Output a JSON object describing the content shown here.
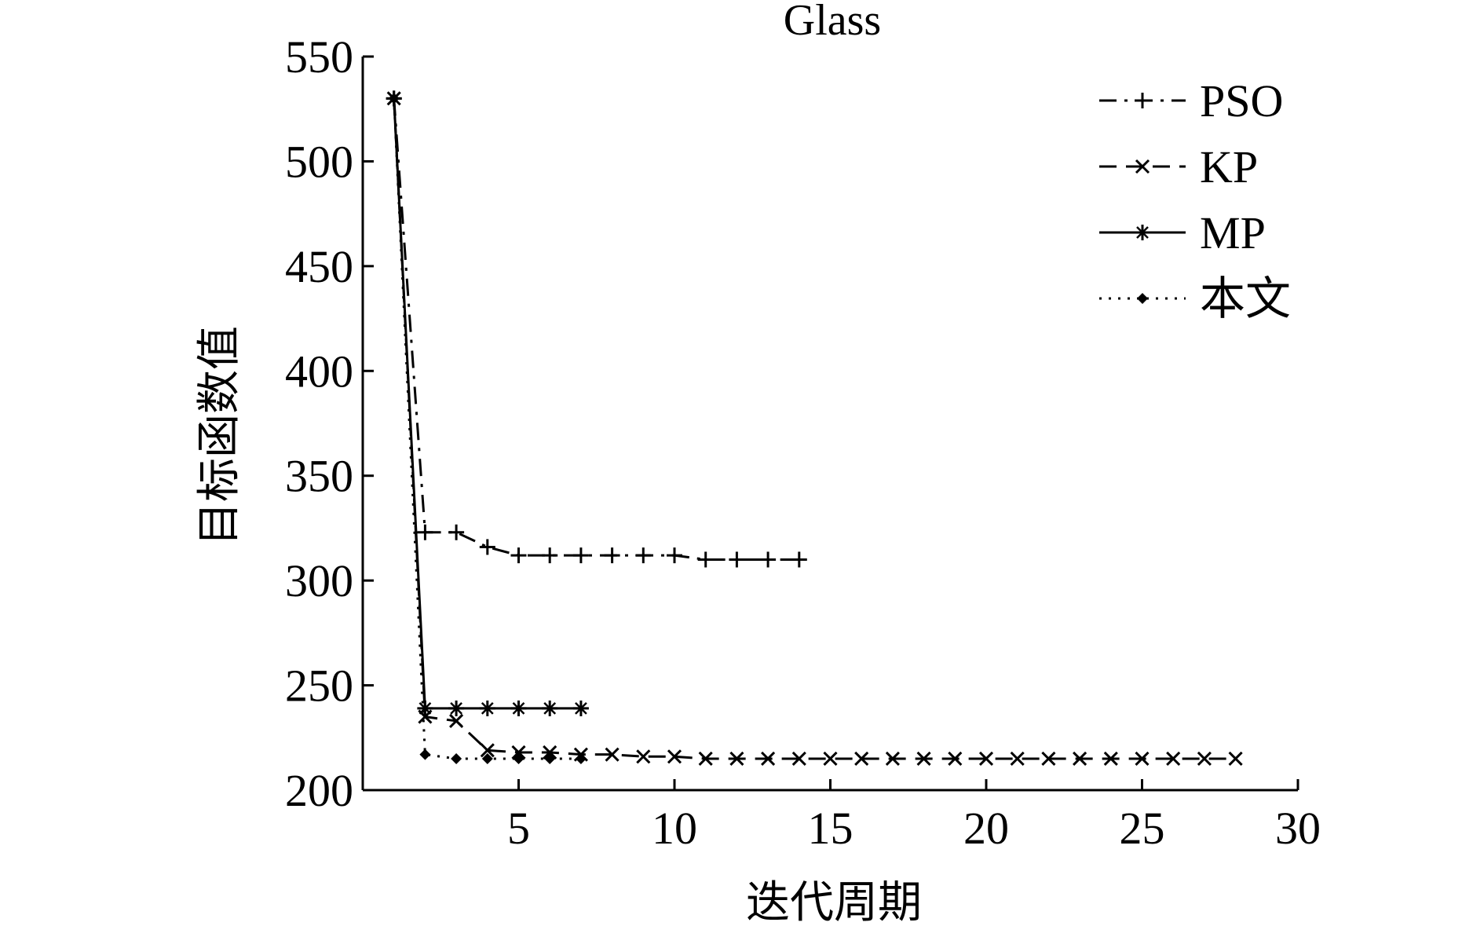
{
  "chart_data": {
    "type": "line",
    "title": "Glass",
    "xlabel": "迭代周期",
    "ylabel": "目标函数值",
    "xlim": [
      0,
      30
    ],
    "ylim": [
      200,
      550
    ],
    "xticks": [
      5,
      10,
      15,
      20,
      25,
      30
    ],
    "yticks": [
      200,
      250,
      300,
      350,
      400,
      450,
      500,
      550
    ],
    "grid": false,
    "legend_position": "top-right",
    "series": [
      {
        "name": "PSO",
        "linestyle": "dashdot",
        "marker": "plus",
        "x": [
          1,
          2,
          3,
          4,
          5,
          6,
          7,
          8,
          9,
          10,
          11,
          12,
          13,
          14
        ],
        "y": [
          530,
          323,
          323,
          316,
          312,
          312,
          312,
          312,
          312,
          312,
          310,
          310,
          310,
          310
        ]
      },
      {
        "name": "KP",
        "linestyle": "dashed",
        "marker": "x",
        "x": [
          1,
          2,
          3,
          4,
          5,
          6,
          7,
          8,
          9,
          10,
          11,
          12,
          13,
          14,
          15,
          16,
          17,
          18,
          19,
          20,
          21,
          22,
          23,
          24,
          25,
          26,
          27,
          28
        ],
        "y": [
          530,
          235,
          233,
          219,
          218,
          218,
          217,
          217,
          216,
          216,
          215,
          215,
          215,
          215,
          215,
          215,
          215,
          215,
          215,
          215,
          215,
          215,
          215,
          215,
          215,
          215,
          215,
          215
        ]
      },
      {
        "name": "MP",
        "linestyle": "solid",
        "marker": "star",
        "x": [
          1,
          2,
          3,
          4,
          5,
          6,
          7
        ],
        "y": [
          530,
          239,
          239,
          239,
          239,
          239,
          239
        ]
      },
      {
        "name": "本文",
        "linestyle": "dotted",
        "marker": "diamond",
        "x": [
          1,
          2,
          3,
          4,
          5,
          6,
          7
        ],
        "y": [
          530,
          217,
          215,
          215,
          215,
          215,
          215
        ]
      }
    ]
  }
}
